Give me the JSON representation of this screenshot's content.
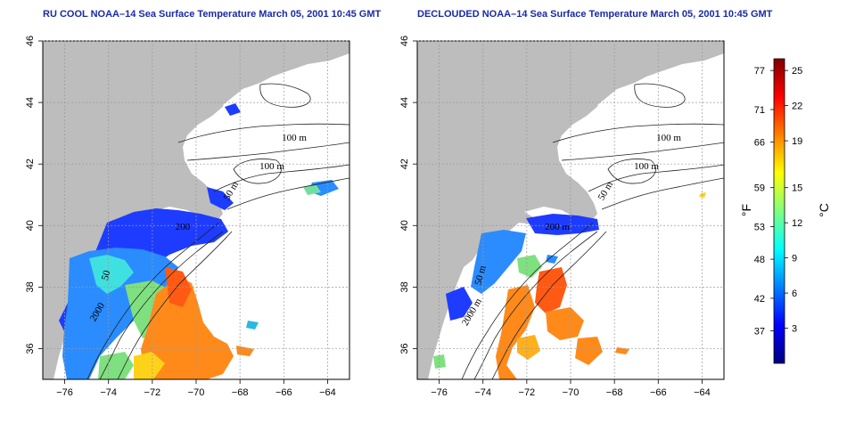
{
  "panels": [
    {
      "title": "RU COOL NOAA–14 Sea Surface Temperature March 05, 2001 10:45 GMT",
      "contour_labels": [
        "100 m",
        "100 m",
        "50 m",
        "200",
        "50",
        "2000"
      ]
    },
    {
      "title": "DECLOUDED NOAA–14 Sea Surface Temperature March 05, 2001 10:45 GMT",
      "contour_labels": [
        "100 m",
        "100 m",
        "50 m",
        "200 m",
        "50 m",
        "2000 m"
      ]
    }
  ],
  "axes": {
    "lon_ticks": [
      "−76",
      "−74",
      "−72",
      "−70",
      "−68",
      "−66",
      "−64"
    ],
    "lat_ticks": [
      "36",
      "38",
      "40",
      "42",
      "44",
      "46"
    ]
  },
  "colorbar": {
    "fahrenheit_label": "°F",
    "celsius_label": "°C",
    "fahrenheit_ticks": [
      "77",
      "71",
      "66",
      "59",
      "53",
      "48",
      "42",
      "37"
    ],
    "celsius_ticks": [
      "25",
      "22",
      "19",
      "15",
      "12",
      "9",
      "6",
      "3"
    ],
    "colors": [
      "#00007f",
      "#0000ff",
      "#007fff",
      "#00ffff",
      "#7fff7f",
      "#ffff00",
      "#ff7f00",
      "#ff0000",
      "#7f0000"
    ]
  },
  "colors": {
    "land": "#bdbdbd",
    "title": "#1a2aa6",
    "grid": "#9a9a9a"
  }
}
